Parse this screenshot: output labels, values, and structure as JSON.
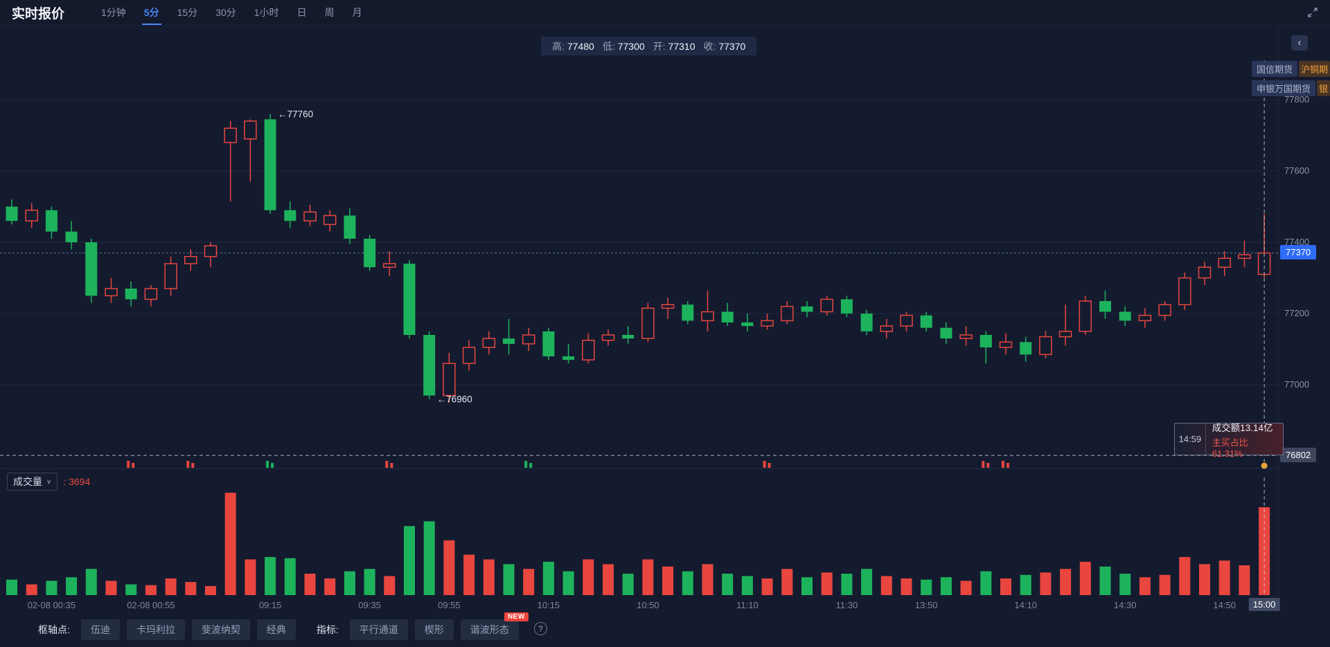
{
  "header": {
    "title": "实时报价",
    "timeframes": [
      {
        "label": "1分钟"
      },
      {
        "label": "5分",
        "active": true
      },
      {
        "label": "15分"
      },
      {
        "label": "30分"
      },
      {
        "label": "1小时"
      },
      {
        "label": "日"
      },
      {
        "label": "周"
      },
      {
        "label": "月"
      }
    ]
  },
  "ohlc": [
    {
      "label": "高:",
      "value": "77480"
    },
    {
      "label": "低:",
      "value": "77300"
    },
    {
      "label": "开:",
      "value": "77310"
    },
    {
      "label": "收:",
      "value": "77370"
    }
  ],
  "broker_tags": [
    {
      "name": "国信期货",
      "suffix": "沪铜期"
    },
    {
      "name": "申银万国期货",
      "suffix": "银"
    }
  ],
  "price_tag": "77370",
  "crosshair_tag": "76802",
  "tooltip": {
    "time": "14:59",
    "line1": "成交额13.14亿",
    "line2": "主买占比61.31%"
  },
  "volume_header": {
    "label": "成交量",
    "separator": ": ",
    "value": "3694"
  },
  "footer": {
    "pivot_label": "枢轴点:",
    "pivot_buttons": [
      "伍迪",
      "卡玛利拉",
      "斐波纳契",
      "经典"
    ],
    "indicator_label": "指标:",
    "indicator_buttons": [
      "平行通道",
      "楔形",
      "谐波形态"
    ],
    "new_badge": "NEW",
    "help_icon": "?"
  },
  "chart_data": {
    "type": "candlestick",
    "timeframe": "5分",
    "colors": {
      "up": "#e8463f",
      "down": "#1db35c",
      "accent": "#2e6bf6",
      "marker": "#e8a33c"
    },
    "price_axis": {
      "ticks": [
        77800,
        77600,
        77400,
        77200,
        77000
      ]
    },
    "current_price": 77370,
    "crosshair": {
      "candle": 63,
      "price": 76802,
      "time": "14:59"
    },
    "annotations": [
      {
        "candle": 13,
        "price": 77760,
        "text": "←77760"
      },
      {
        "candle": 21,
        "price": 76960,
        "text": "←76960"
      }
    ],
    "markers": [
      {
        "candle": 6,
        "color": "red"
      },
      {
        "candle": 9,
        "color": "red"
      },
      {
        "candle": 13,
        "color": "green"
      },
      {
        "candle": 19,
        "color": "red"
      },
      {
        "candle": 26,
        "color": "green"
      },
      {
        "candle": 38,
        "color": "red"
      },
      {
        "candle": 49,
        "color": "red"
      },
      {
        "candle": 50,
        "color": "red"
      }
    ],
    "x_labels": [
      {
        "candle": 2,
        "label": "02-08 00:35"
      },
      {
        "candle": 7,
        "label": "02-08 00:55"
      },
      {
        "candle": 13,
        "label": "09:15"
      },
      {
        "candle": 18,
        "label": "09:35"
      },
      {
        "candle": 22,
        "label": "09:55"
      },
      {
        "candle": 27,
        "label": "10:15"
      },
      {
        "candle": 32,
        "label": "10:50"
      },
      {
        "candle": 37,
        "label": "11:10"
      },
      {
        "candle": 42,
        "label": "11:30"
      },
      {
        "candle": 46,
        "label": "13:50"
      },
      {
        "candle": 51,
        "label": "14:10"
      },
      {
        "candle": 56,
        "label": "14:30"
      },
      {
        "candle": 61,
        "label": "14:50"
      },
      {
        "candle": 63,
        "label": "15:00",
        "highlight": true
      }
    ],
    "candles": [
      [
        77500,
        77520,
        77450,
        77460,
        650
      ],
      [
        77460,
        77510,
        77440,
        77490,
        450
      ],
      [
        77490,
        77500,
        77410,
        77430,
        600
      ],
      [
        77430,
        77460,
        77380,
        77400,
        750
      ],
      [
        77400,
        77410,
        77230,
        77250,
        1100
      ],
      [
        77250,
        77300,
        77230,
        77270,
        600
      ],
      [
        77270,
        77290,
        77220,
        77240,
        450
      ],
      [
        77240,
        77280,
        77220,
        77270,
        420
      ],
      [
        77270,
        77360,
        77250,
        77340,
        700
      ],
      [
        77340,
        77380,
        77320,
        77360,
        550
      ],
      [
        77360,
        77400,
        77330,
        77390,
        380
      ],
      [
        77680,
        77740,
        77515,
        77720,
        4300
      ],
      [
        77690,
        77745,
        77570,
        77740,
        1500
      ],
      [
        77745,
        77760,
        77480,
        77490,
        1600
      ],
      [
        77490,
        77515,
        77440,
        77460,
        1550
      ],
      [
        77460,
        77505,
        77445,
        77485,
        900
      ],
      [
        77450,
        77490,
        77430,
        77475,
        700
      ],
      [
        77475,
        77495,
        77395,
        77410,
        1000
      ],
      [
        77410,
        77420,
        77320,
        77330,
        1100
      ],
      [
        77330,
        77375,
        77305,
        77340,
        800
      ],
      [
        77340,
        77350,
        77130,
        77140,
        2900
      ],
      [
        77140,
        77150,
        76960,
        76970,
        3100
      ],
      [
        76970,
        77090,
        76950,
        77060,
        2300
      ],
      [
        77060,
        77125,
        77040,
        77105,
        1700
      ],
      [
        77105,
        77150,
        77085,
        77130,
        1500
      ],
      [
        77130,
        77185,
        77085,
        77115,
        1300
      ],
      [
        77115,
        77160,
        77095,
        77140,
        1100
      ],
      [
        77150,
        77160,
        77070,
        77080,
        1400
      ],
      [
        77080,
        77115,
        77060,
        77070,
        1000
      ],
      [
        77070,
        77145,
        77060,
        77125,
        1500
      ],
      [
        77125,
        77155,
        77110,
        77140,
        1300
      ],
      [
        77140,
        77165,
        77115,
        77130,
        900
      ],
      [
        77130,
        77230,
        77120,
        77215,
        1500
      ],
      [
        77215,
        77245,
        77185,
        77225,
        1200
      ],
      [
        77225,
        77235,
        77170,
        77180,
        1000
      ],
      [
        77180,
        77265,
        77150,
        77205,
        1300
      ],
      [
        77205,
        77230,
        77165,
        77175,
        900
      ],
      [
        77175,
        77200,
        77150,
        77165,
        800
      ],
      [
        77165,
        77200,
        77155,
        77180,
        700
      ],
      [
        77180,
        77235,
        77170,
        77220,
        1100
      ],
      [
        77220,
        77235,
        77190,
        77205,
        750
      ],
      [
        77205,
        77250,
        77195,
        77240,
        950
      ],
      [
        77240,
        77250,
        77190,
        77200,
        900
      ],
      [
        77200,
        77210,
        77140,
        77150,
        1100
      ],
      [
        77150,
        77185,
        77130,
        77165,
        800
      ],
      [
        77165,
        77205,
        77150,
        77195,
        700
      ],
      [
        77195,
        77205,
        77150,
        77160,
        650
      ],
      [
        77160,
        77175,
        77115,
        77130,
        750
      ],
      [
        77130,
        77165,
        77110,
        77140,
        600
      ],
      [
        77140,
        77150,
        77060,
        77105,
        1000
      ],
      [
        77105,
        77145,
        77085,
        77120,
        700
      ],
      [
        77120,
        77135,
        77065,
        77085,
        850
      ],
      [
        77085,
        77150,
        77075,
        77135,
        950
      ],
      [
        77135,
        77225,
        77110,
        77150,
        1100
      ],
      [
        77150,
        77250,
        77140,
        77235,
        1400
      ],
      [
        77235,
        77265,
        77185,
        77205,
        1200
      ],
      [
        77205,
        77220,
        77165,
        77180,
        900
      ],
      [
        77180,
        77215,
        77160,
        77195,
        750
      ],
      [
        77195,
        77235,
        77180,
        77225,
        850
      ],
      [
        77225,
        77315,
        77210,
        77300,
        1600
      ],
      [
        77300,
        77345,
        77280,
        77330,
        1300
      ],
      [
        77330,
        77375,
        77305,
        77355,
        1450
      ],
      [
        77355,
        77405,
        77330,
        77365,
        1250
      ],
      [
        77310,
        77480,
        77300,
        77370,
        3694
      ]
    ]
  }
}
